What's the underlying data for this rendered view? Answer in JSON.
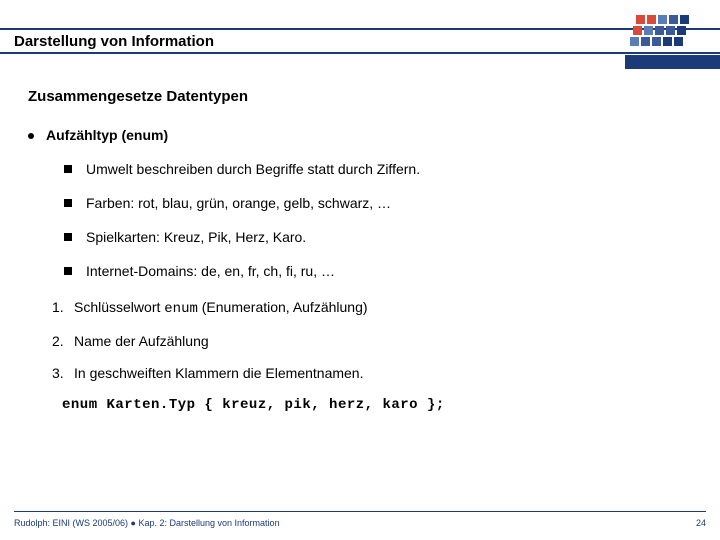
{
  "colors": {
    "brand_blue": "#1a3a7a",
    "logo_grid": [
      [
        "#d94a3a",
        "#d94a3a",
        "#5a7db8",
        "#3a5a9a",
        "#1a3a7a"
      ],
      [
        "#d94a3a",
        "#5a7db8",
        "#3a5a9a",
        "#3a5a9a",
        "#1a3a7a"
      ],
      [
        "#5a7db8",
        "#3a5a9a",
        "#3a5a9a",
        "#1a3a7a",
        "#1a3a7a"
      ]
    ],
    "logo_skew": 3
  },
  "header": {
    "title": "Darstellung von Information"
  },
  "subtitle": "Zusammengesetze Datentypen",
  "main_bullet": "Aufzähltyp (enum)",
  "sub_bullets": [
    "Umwelt beschreiben durch Begriffe statt durch Ziffern.",
    "Farben: rot, blau, grün, orange, gelb, schwarz, …",
    "Spielkarten: Kreuz, Pik, Herz, Karo.",
    "Internet-Domains: de, en, fr, ch,  fi, ru, …"
  ],
  "numbered_items": [
    {
      "n": "1.",
      "text_pre": "Schlüsselwort ",
      "code": "enum",
      "text_post": "   (Enumeration, Aufzählung)"
    },
    {
      "n": "2.",
      "text_pre": "Name der Aufzählung",
      "code": "",
      "text_post": ""
    },
    {
      "n": "3.",
      "text_pre": "In geschweiften Klammern die Elementnamen.",
      "code": "",
      "text_post": ""
    }
  ],
  "code": "enum Karten.Typ { kreuz, pik, herz, karo };",
  "footer": {
    "left": "Rudolph: EINI (WS 2005/06)  ●  Kap. 2: Darstellung von Information",
    "page": "24"
  }
}
